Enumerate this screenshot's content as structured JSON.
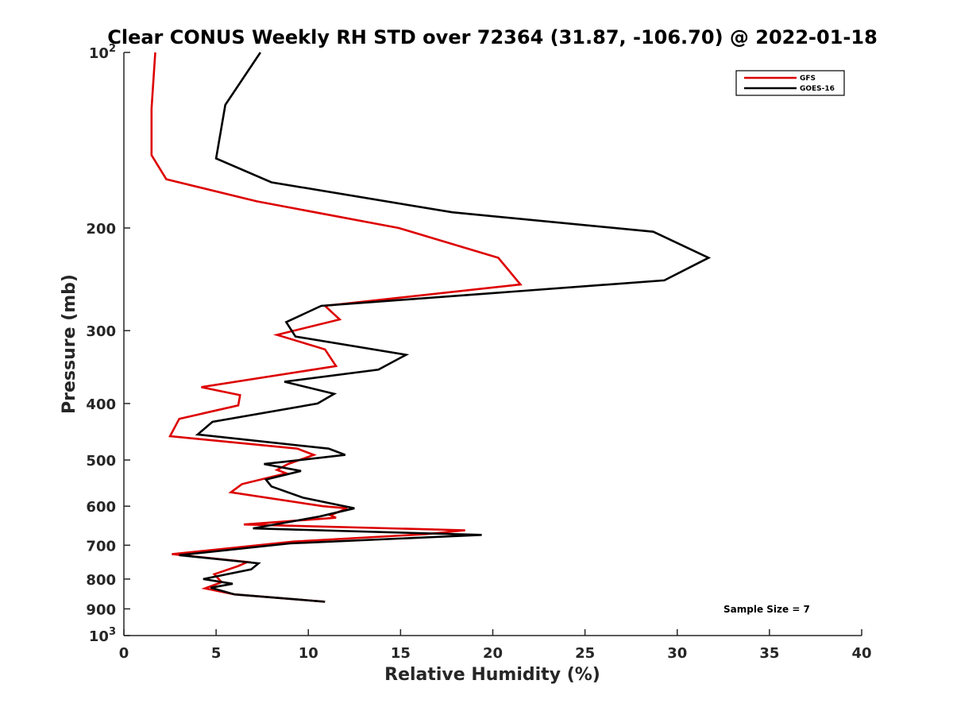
{
  "chart_data": {
    "type": "line",
    "title": "Clear CONUS Weekly RH STD over 72364 (31.87, -106.70) @ 2022-01-18",
    "xlabel": "Relative Humidity (%)",
    "ylabel": "Pressure (mb)",
    "xlim": [
      0,
      40
    ],
    "ylim": [
      100,
      1000
    ],
    "y_scale": "log",
    "y_reversed": true,
    "x_ticks": [
      "0",
      "5",
      "10",
      "15",
      "20",
      "25",
      "30",
      "35",
      "40"
    ],
    "y_ticks": [
      {
        "value": 100,
        "base": "10",
        "exp": "2"
      },
      {
        "value": 200,
        "label": "200"
      },
      {
        "value": 300,
        "label": "300"
      },
      {
        "value": 400,
        "label": "400"
      },
      {
        "value": 500,
        "label": "500"
      },
      {
        "value": 600,
        "label": "600"
      },
      {
        "value": 700,
        "label": "700"
      },
      {
        "value": 800,
        "label": "800"
      },
      {
        "value": 900,
        "label": "900"
      },
      {
        "value": 1000,
        "base": "10",
        "exp": "3"
      }
    ],
    "legend_position": "top-right",
    "grid": false,
    "annotation": "Sample Size = 7",
    "series": [
      {
        "name": "GFS",
        "color": "#dd0000",
        "points": [
          [
            1.7,
            100
          ],
          [
            1.5,
            125
          ],
          [
            1.5,
            150
          ],
          [
            2.3,
            165
          ],
          [
            7.2,
            180
          ],
          [
            14.9,
            200
          ],
          [
            20.3,
            225
          ],
          [
            21.5,
            250
          ],
          [
            10.9,
            272
          ],
          [
            11.7,
            287
          ],
          [
            8.3,
            305
          ],
          [
            10.9,
            323
          ],
          [
            11.5,
            345
          ],
          [
            4.2,
            375
          ],
          [
            6.3,
            387
          ],
          [
            6.2,
            403
          ],
          [
            3.0,
            425
          ],
          [
            2.5,
            455
          ],
          [
            9.4,
            478
          ],
          [
            10.3,
            490
          ],
          [
            8.9,
            508
          ],
          [
            8.3,
            520
          ],
          [
            8.8,
            527
          ],
          [
            6.4,
            550
          ],
          [
            5.8,
            568
          ],
          [
            10.8,
            600
          ],
          [
            12.1,
            605
          ],
          [
            11.2,
            622
          ],
          [
            11.5,
            628
          ],
          [
            6.5,
            645
          ],
          [
            18.5,
            660
          ],
          [
            16.4,
            670
          ],
          [
            9.2,
            690
          ],
          [
            2.6,
            725
          ],
          [
            6.7,
            748
          ],
          [
            6.2,
            760
          ],
          [
            4.9,
            785
          ],
          [
            5.3,
            810
          ],
          [
            4.4,
            830
          ],
          [
            6.0,
            850
          ],
          [
            10.9,
            875
          ]
        ]
      },
      {
        "name": "GOES-16",
        "color": "#000000",
        "points": [
          [
            7.4,
            100
          ],
          [
            5.5,
            123
          ],
          [
            5.0,
            152
          ],
          [
            8.0,
            167
          ],
          [
            17.8,
            188
          ],
          [
            28.7,
            203
          ],
          [
            31.7,
            225
          ],
          [
            29.3,
            246
          ],
          [
            10.7,
            272
          ],
          [
            8.8,
            290
          ],
          [
            9.3,
            307
          ],
          [
            15.3,
            330
          ],
          [
            13.8,
            350
          ],
          [
            8.7,
            367
          ],
          [
            11.4,
            385
          ],
          [
            10.5,
            400
          ],
          [
            4.8,
            430
          ],
          [
            4.0,
            452
          ],
          [
            11.1,
            478
          ],
          [
            12.0,
            490
          ],
          [
            7.6,
            508
          ],
          [
            9.6,
            522
          ],
          [
            7.7,
            540
          ],
          [
            8.0,
            555
          ],
          [
            9.7,
            580
          ],
          [
            12.5,
            605
          ],
          [
            10.6,
            625
          ],
          [
            7.0,
            655
          ],
          [
            19.4,
            672
          ],
          [
            9.0,
            695
          ],
          [
            3.0,
            728
          ],
          [
            7.3,
            752
          ],
          [
            6.9,
            770
          ],
          [
            4.3,
            800
          ],
          [
            5.9,
            815
          ],
          [
            4.7,
            828
          ],
          [
            6.0,
            850
          ],
          [
            10.9,
            875
          ]
        ]
      }
    ]
  }
}
